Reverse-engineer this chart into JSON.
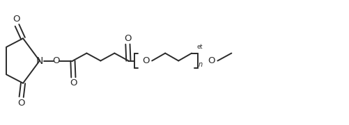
{
  "background_color": "#ffffff",
  "line_color": "#2a2a2a",
  "line_width": 1.4,
  "font_size": 8.5,
  "figsize": [
    5.01,
    1.8
  ],
  "dpi": 100,
  "xlim": [
    0,
    10.5
  ],
  "ylim": [
    0,
    3.6
  ]
}
